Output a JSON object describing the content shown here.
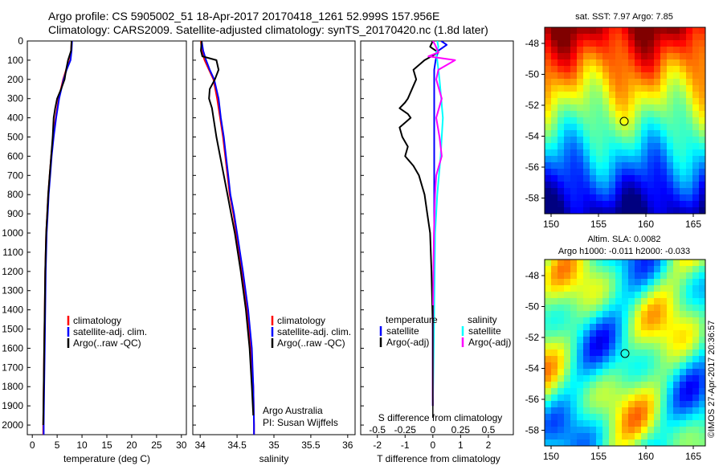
{
  "title": {
    "line1": "Argo profile: CS 5905002_51 18-Apr-2017 20170418_1261 52.999S 157.956E",
    "line2": "Climatology: CARS2009. Satellite-adjusted climatology: synTS_20170420.nc (1.8d later)"
  },
  "colors": {
    "climatology": "#ff0000",
    "satellite": "#0000ff",
    "argo": "#000000",
    "sat_salinity": "#00ffff",
    "argo_salinity": "#ff00ff"
  },
  "depth_ticks": [
    "0",
    "100",
    "200",
    "300",
    "400",
    "500",
    "600",
    "700",
    "800",
    "900",
    "1000",
    "1100",
    "1200",
    "1300",
    "1400",
    "1500",
    "1600",
    "1700",
    "1800",
    "1900",
    "2000"
  ],
  "panel1": {
    "xlabel": "temperature (deg C)",
    "xticks": [
      "0",
      "5",
      "10",
      "15",
      "20",
      "25",
      "30"
    ],
    "legend": [
      "climatology",
      "satellite-adj. clim.",
      "Argo(..raw -QC)"
    ]
  },
  "panel2": {
    "xlabel": "salinity",
    "xticks": [
      "34",
      "34.5",
      "35",
      "35.5",
      "36"
    ],
    "legend": [
      "climatology",
      "satellite-adj. clim.",
      "Argo(..raw -QC)"
    ],
    "note1": "Argo Australia",
    "note2": "PI: Susan Wijffels"
  },
  "panel3": {
    "xlabel": "T difference from climatology",
    "xticks": [
      "-2",
      "-1",
      "0",
      "1",
      "2"
    ],
    "s_label": "S difference from climatology",
    "s_ticks": [
      "-0.5",
      "-0.25",
      "0",
      "0.25",
      "0.5"
    ],
    "legend_temp_title": "temperature",
    "legend_sal_title": "salinity",
    "legend_temp": [
      "satellite",
      "Argo(-adj)"
    ],
    "legend_sal": [
      "satellite",
      "Argo(-adj)"
    ]
  },
  "map1": {
    "title": "sat. SST: 7.97  Argo: 7.85",
    "yticks": [
      "-48",
      "-50",
      "-52",
      "-54",
      "-56",
      "-58"
    ],
    "xticks": [
      "150",
      "155",
      "160",
      "165"
    ]
  },
  "map2": {
    "title1": "Altim. SLA: 0.0082",
    "title2": "Argo h1000: -0.011 h2000: -0.033",
    "yticks": [
      "-48",
      "-50",
      "-52",
      "-54",
      "-56",
      "-58"
    ],
    "xticks": [
      "150",
      "155",
      "160",
      "165"
    ]
  },
  "credit": "©IMOS 27-Apr-2017 20:36:57",
  "chart_data": [
    {
      "type": "line",
      "xlabel": "temperature (deg C)",
      "ylabel": "",
      "xlim": [
        -1,
        31
      ],
      "ylim": [
        2050,
        0
      ],
      "series": [
        {
          "name": "climatology",
          "depth": [
            0,
            50,
            100,
            150,
            200,
            300,
            400,
            500,
            600,
            700,
            800,
            900,
            1000,
            1200,
            1400,
            1600,
            1800,
            2000,
            2050
          ],
          "values": [
            7.9,
            7.8,
            7.6,
            6.8,
            6.2,
            5.3,
            4.7,
            4.2,
            3.8,
            3.5,
            3.2,
            3.0,
            2.8,
            2.6,
            2.5,
            2.4,
            2.3,
            2.2,
            2.2
          ]
        },
        {
          "name": "satellite-adj. clim.",
          "depth": [
            0,
            50,
            100,
            150,
            200,
            300,
            400,
            500,
            600,
            700,
            800,
            900,
            1000,
            1200,
            1400,
            1600,
            1800,
            2000,
            2050
          ],
          "values": [
            8.0,
            7.9,
            7.7,
            6.9,
            6.3,
            5.4,
            4.8,
            4.3,
            3.9,
            3.6,
            3.3,
            3.1,
            2.9,
            2.7,
            2.6,
            2.5,
            2.4,
            2.3,
            2.3
          ]
        },
        {
          "name": "Argo(..raw -QC)",
          "depth": [
            0,
            50,
            100,
            150,
            200,
            250,
            300,
            350,
            400,
            500,
            600,
            700,
            800,
            900,
            1000,
            1200,
            1400,
            1600,
            1800,
            2000
          ],
          "values": [
            7.9,
            7.8,
            7.2,
            6.8,
            6.5,
            5.8,
            5.0,
            4.6,
            4.3,
            4.1,
            3.8,
            3.5,
            3.2,
            3.0,
            2.8,
            2.6,
            2.5,
            2.4,
            2.3,
            2.2
          ]
        }
      ]
    },
    {
      "type": "line",
      "xlabel": "salinity",
      "ylabel": "",
      "xlim": [
        33.9,
        36.1
      ],
      "ylim": [
        2050,
        0
      ],
      "series": [
        {
          "name": "climatology",
          "depth": [
            0,
            50,
            100,
            150,
            200,
            300,
            400,
            500,
            600,
            700,
            800,
            900,
            1000,
            1200,
            1400,
            1600,
            1800,
            2000,
            2050
          ],
          "values": [
            34.01,
            34.02,
            34.06,
            34.12,
            34.18,
            34.23,
            34.27,
            34.31,
            34.34,
            34.37,
            34.4,
            34.45,
            34.49,
            34.57,
            34.64,
            34.69,
            34.72,
            34.73,
            34.73
          ]
        },
        {
          "name": "satellite-adj. clim.",
          "depth": [
            0,
            50,
            100,
            150,
            200,
            300,
            400,
            500,
            600,
            700,
            800,
            900,
            1000,
            1200,
            1400,
            1600,
            1800,
            2000,
            2050
          ],
          "values": [
            34.02,
            34.04,
            34.08,
            34.13,
            34.19,
            34.25,
            34.28,
            34.32,
            34.35,
            34.38,
            34.41,
            34.46,
            34.5,
            34.58,
            34.65,
            34.7,
            34.72,
            34.73,
            34.73
          ]
        },
        {
          "name": "Argo(..raw -QC)",
          "depth": [
            0,
            50,
            80,
            100,
            150,
            200,
            250,
            300,
            350,
            400,
            500,
            600,
            700,
            800,
            900,
            1000,
            1200,
            1400,
            1600,
            1800,
            1950
          ],
          "values": [
            34.02,
            34.01,
            34.03,
            34.22,
            34.25,
            34.2,
            34.13,
            34.12,
            34.16,
            34.18,
            34.22,
            34.27,
            34.32,
            34.37,
            34.42,
            34.47,
            34.55,
            34.62,
            34.67,
            34.7,
            34.72
          ]
        }
      ]
    },
    {
      "type": "line",
      "xlabel": "T difference from climatology",
      "ylabel": "",
      "xlim": [
        -2.6,
        2.9
      ],
      "ylim": [
        2050,
        0
      ],
      "series": [
        {
          "name": "satellite",
          "depth": [
            0,
            20,
            50,
            100,
            150,
            200,
            300,
            500,
            800,
            1000,
            1500,
            1900
          ],
          "values": [
            0.3,
            0.5,
            0.2,
            0.1,
            0.05,
            0.05,
            0.05,
            0.05,
            0.05,
            0.05,
            0.0,
            0.0
          ]
        },
        {
          "name": "Argo(-adj)",
          "depth": [
            0,
            30,
            60,
            100,
            150,
            200,
            300,
            320,
            350,
            380,
            400,
            450,
            500,
            550,
            600,
            650,
            700,
            750,
            800,
            900,
            1000,
            1200,
            1500,
            1900
          ],
          "values": [
            0.0,
            -0.1,
            0.2,
            -0.3,
            -0.7,
            -0.6,
            -0.9,
            -1.0,
            -1.2,
            -0.9,
            -0.8,
            -1.2,
            -1.1,
            -0.9,
            -1.0,
            -0.7,
            -0.5,
            -0.4,
            -0.3,
            -0.2,
            -0.1,
            -0.05,
            0.0,
            0.0
          ]
        },
        {
          "name": "satellite (salinity)",
          "depth": [
            0,
            30,
            60,
            100,
            150,
            200,
            400,
            600,
            800,
            1000,
            1500,
            1900
          ],
          "values": [
            0.04,
            0.05,
            0.03,
            0.04,
            0.05,
            0.06,
            0.09,
            0.07,
            0.04,
            0.02,
            0.01,
            0.0
          ]
        },
        {
          "name": "Argo(-adj) (salinity)",
          "depth": [
            0,
            20,
            60,
            80,
            100,
            150,
            200,
            300,
            400,
            500,
            600,
            700,
            800,
            1000,
            1200,
            1500,
            1900
          ],
          "values": [
            0.0,
            0.02,
            0.05,
            -0.04,
            0.2,
            0.05,
            0.03,
            0.08,
            0.03,
            0.06,
            0.08,
            0.03,
            0.02,
            0.01,
            0.005,
            0.0,
            0.0
          ]
        }
      ]
    }
  ]
}
